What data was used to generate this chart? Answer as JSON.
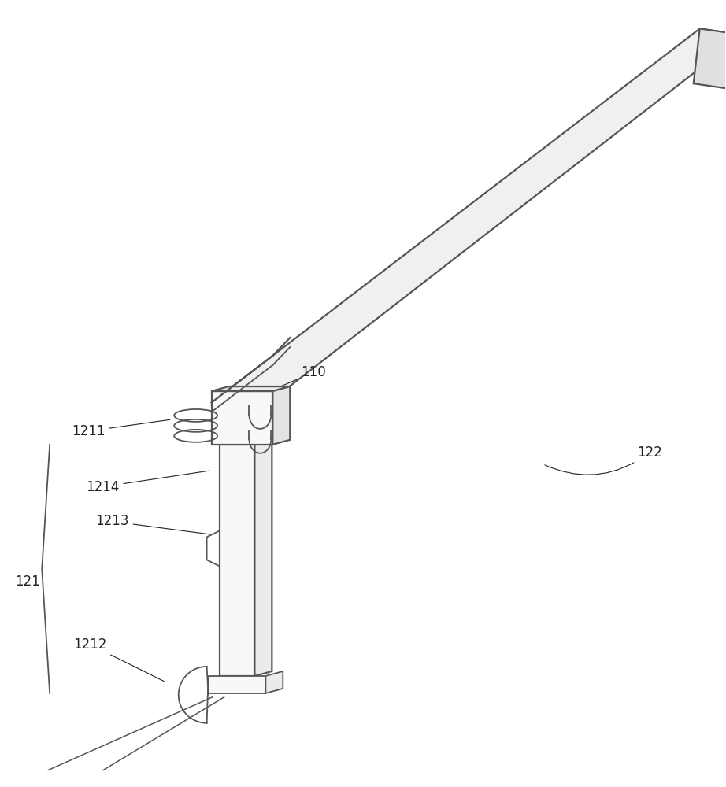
{
  "bg_color": "#ffffff",
  "line_color": "#555555",
  "line_width": 1.3,
  "label_color": "#222222",
  "label_fontsize": 12,
  "bar_color": "#dddddd"
}
